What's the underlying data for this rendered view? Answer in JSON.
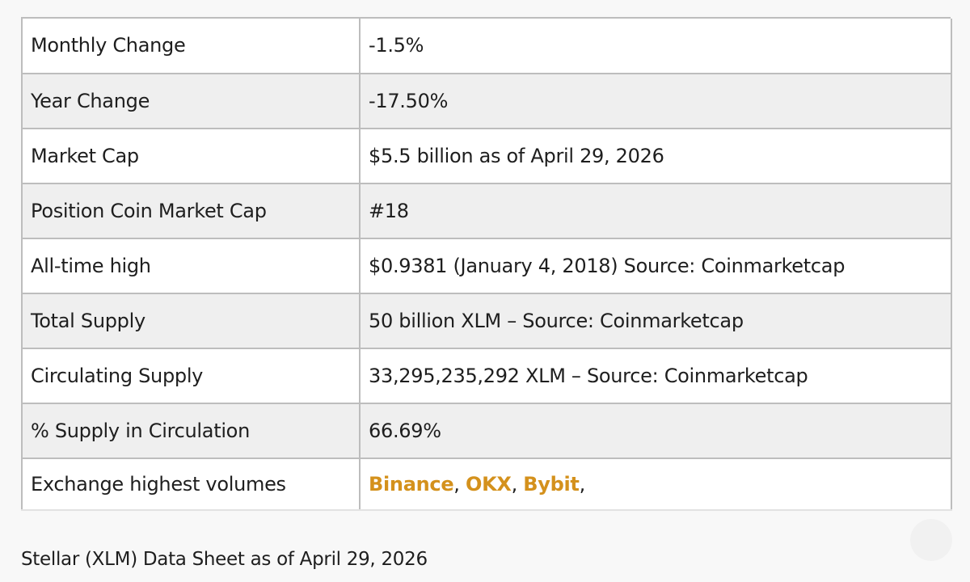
{
  "table": {
    "rows": [
      {
        "label": "Monthly Change",
        "value": "-1.5%"
      },
      {
        "label": "Year Change",
        "value": "-17.50%"
      },
      {
        "label": "Market Cap",
        "value": "$5.5 billion as of April 29, 2026"
      },
      {
        "label": "Position Coin Market Cap",
        "value": "#18"
      },
      {
        "label": "All-time high",
        "value": "$0.9381 (January 4, 2018) Source: Coinmarketcap"
      },
      {
        "label": "Total Supply",
        "value": "50 billion XLM – Source: Coinmarketcap"
      },
      {
        "label": "Circulating Supply",
        "value": "33,295,235,292 XLM – Source: Coinmarketcap"
      },
      {
        "label": "% Supply in Circulation",
        "value": "66.69%"
      }
    ],
    "exchange_row": {
      "label": "Exchange highest volumes",
      "exchanges": [
        "Binance",
        "OKX",
        "Bybit"
      ],
      "separator": ", ",
      "trailing": ","
    }
  },
  "caption": "Stellar (XLM) Data Sheet as of April 29, 2026",
  "colors": {
    "link": "#d4911c",
    "border": "#bdbdbd",
    "row_alt": "#efefef"
  }
}
